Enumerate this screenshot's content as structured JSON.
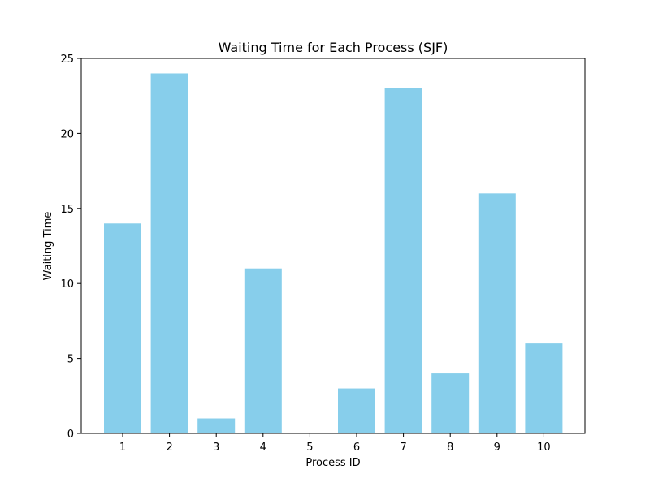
{
  "chart_data": {
    "type": "bar",
    "title": "Waiting Time for Each Process (SJF)",
    "xlabel": "Process ID",
    "ylabel": "Waiting Time",
    "categories": [
      "1",
      "2",
      "3",
      "4",
      "5",
      "6",
      "7",
      "8",
      "9",
      "10"
    ],
    "values": [
      14,
      24,
      1,
      11,
      0,
      3,
      23,
      4,
      16,
      6
    ],
    "ylim": [
      0,
      25
    ],
    "yticks": [
      0,
      5,
      10,
      15,
      20,
      25
    ],
    "grid": false,
    "bar_color": "#87ceeb"
  }
}
